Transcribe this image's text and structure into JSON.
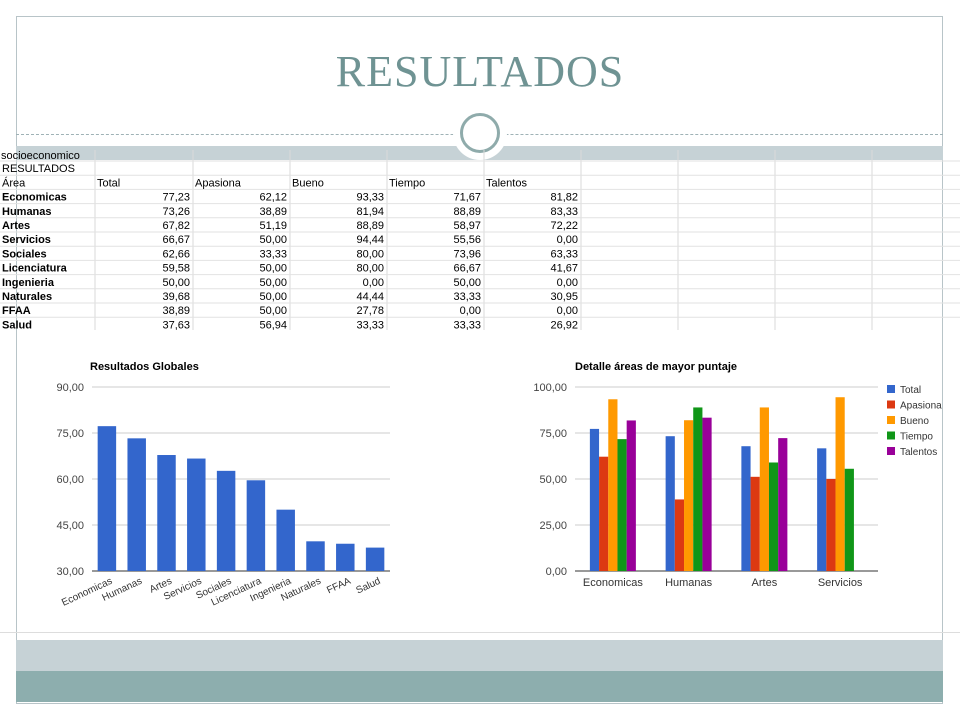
{
  "slide": {
    "title": "RESULTADOS"
  },
  "sheet": {
    "cut_row": "socioeconomico",
    "section_label": "RESULTADOS",
    "headers": [
      "Área",
      "Total",
      "Apasiona",
      "Bueno",
      "Tiempo",
      "Talentos"
    ],
    "rows": [
      [
        "Economicas",
        "77,23",
        "62,12",
        "93,33",
        "71,67",
        "81,82"
      ],
      [
        "Humanas",
        "73,26",
        "38,89",
        "81,94",
        "88,89",
        "83,33"
      ],
      [
        "Artes",
        "67,82",
        "51,19",
        "88,89",
        "58,97",
        "72,22"
      ],
      [
        "Servicios",
        "66,67",
        "50,00",
        "94,44",
        "55,56",
        "0,00"
      ],
      [
        "Sociales",
        "62,66",
        "33,33",
        "80,00",
        "73,96",
        "63,33"
      ],
      [
        "Licenciatura",
        "59,58",
        "50,00",
        "80,00",
        "66,67",
        "41,67"
      ],
      [
        "Ingenieria",
        "50,00",
        "50,00",
        "0,00",
        "50,00",
        "0,00"
      ],
      [
        "Naturales",
        "39,68",
        "50,00",
        "44,44",
        "33,33",
        "30,95"
      ],
      [
        "FFAA",
        "38,89",
        "50,00",
        "27,78",
        "0,00",
        "0,00"
      ],
      [
        "Salud",
        "37,63",
        "56,94",
        "33,33",
        "33,33",
        "26,92"
      ]
    ]
  },
  "chart_data": [
    {
      "type": "bar",
      "title": "Resultados Globales",
      "categories": [
        "Economicas",
        "Humanas",
        "Artes",
        "Servicios",
        "Sociales",
        "Licenciatura",
        "Ingenieria",
        "Naturales",
        "FFAA",
        "Salud"
      ],
      "values": [
        77.23,
        73.26,
        67.82,
        66.67,
        62.66,
        59.58,
        50.0,
        39.68,
        38.89,
        37.63
      ],
      "ylim": [
        30,
        90
      ],
      "yticks": [
        "30,00",
        "45,00",
        "60,00",
        "75,00",
        "90,00"
      ],
      "color": "#3366cc",
      "grid": true,
      "xlabel": "",
      "ylabel": ""
    },
    {
      "type": "bar",
      "title": "Detalle áreas de mayor puntaje",
      "categories": [
        "Economicas",
        "Humanas",
        "Artes",
        "Servicios"
      ],
      "series": [
        {
          "name": "Total",
          "color": "#3366cc",
          "values": [
            77.23,
            73.26,
            67.82,
            66.67
          ]
        },
        {
          "name": "Apasiona",
          "color": "#dc3912",
          "values": [
            62.12,
            38.89,
            51.19,
            50.0
          ]
        },
        {
          "name": "Bueno",
          "color": "#ff9900",
          "values": [
            93.33,
            81.94,
            88.89,
            94.44
          ]
        },
        {
          "name": "Tiempo",
          "color": "#109618",
          "values": [
            71.67,
            88.89,
            58.97,
            55.56
          ]
        },
        {
          "name": "Talentos",
          "color": "#990099",
          "values": [
            81.82,
            83.33,
            72.22,
            0.0
          ]
        }
      ],
      "ylim": [
        0,
        100
      ],
      "yticks": [
        "0,00",
        "25,00",
        "50,00",
        "75,00",
        "100,00"
      ],
      "legend": "right",
      "grid": true,
      "xlabel": "",
      "ylabel": ""
    }
  ]
}
